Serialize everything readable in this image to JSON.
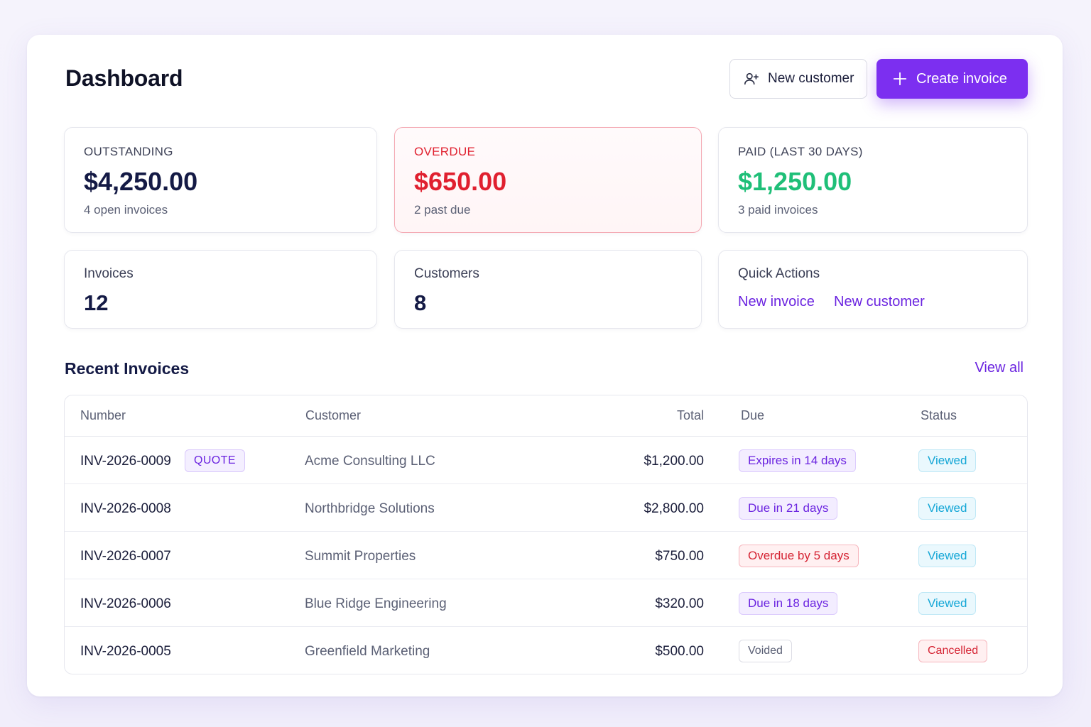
{
  "header": {
    "title": "Dashboard",
    "new_customer_label": "New customer",
    "create_invoice_label": "Create invoice"
  },
  "summary": {
    "outstanding": {
      "label": "OUTSTANDING",
      "value": "$4,250.00",
      "sub": "4 open invoices"
    },
    "overdue": {
      "label": "OVERDUE",
      "value": "$650.00",
      "sub": "2 past due"
    },
    "paid": {
      "label": "PAID (LAST 30 DAYS)",
      "value": "$1,250.00",
      "sub": "3 paid invoices"
    }
  },
  "stats": {
    "invoices": {
      "label": "Invoices",
      "value": "12"
    },
    "customers": {
      "label": "Customers",
      "value": "8"
    },
    "quick_actions": {
      "label": "Quick Actions",
      "new_invoice": "New invoice",
      "new_customer": "New customer"
    }
  },
  "recent": {
    "title": "Recent Invoices",
    "view_all": "View all",
    "columns": [
      "Number",
      "Customer",
      "Total",
      "Due",
      "Status"
    ],
    "rows": [
      {
        "number": "INV-2026-0009",
        "tag": "QUOTE",
        "customer": "Acme Consulting LLC",
        "total": "$1,200.00",
        "due": "Expires in 14 days",
        "status": "Viewed"
      },
      {
        "number": "INV-2026-0008",
        "customer": "Northbridge Solutions",
        "total": "$2,800.00",
        "due": "Due in 21 days",
        "status": "Viewed"
      },
      {
        "number": "INV-2026-0007",
        "customer": "Summit Properties",
        "total": "$750.00",
        "due": "Overdue by 5 days",
        "status": "Viewed"
      },
      {
        "number": "INV-2026-0006",
        "customer": "Blue Ridge Engineering",
        "total": "$320.00",
        "due": "Due in 18 days",
        "status": "Viewed"
      },
      {
        "number": "INV-2026-0005",
        "customer": "Greenfield Marketing",
        "total": "$500.00",
        "due": "Voided",
        "status": "Cancelled"
      }
    ]
  },
  "colors": {
    "accent": "#7c2ff0",
    "overdue": "#e0202f",
    "paid": "#1fbf78",
    "navy": "#141a45"
  },
  "icons": {
    "new_customer": "user-plus-icon",
    "create_invoice": "plus-icon"
  }
}
